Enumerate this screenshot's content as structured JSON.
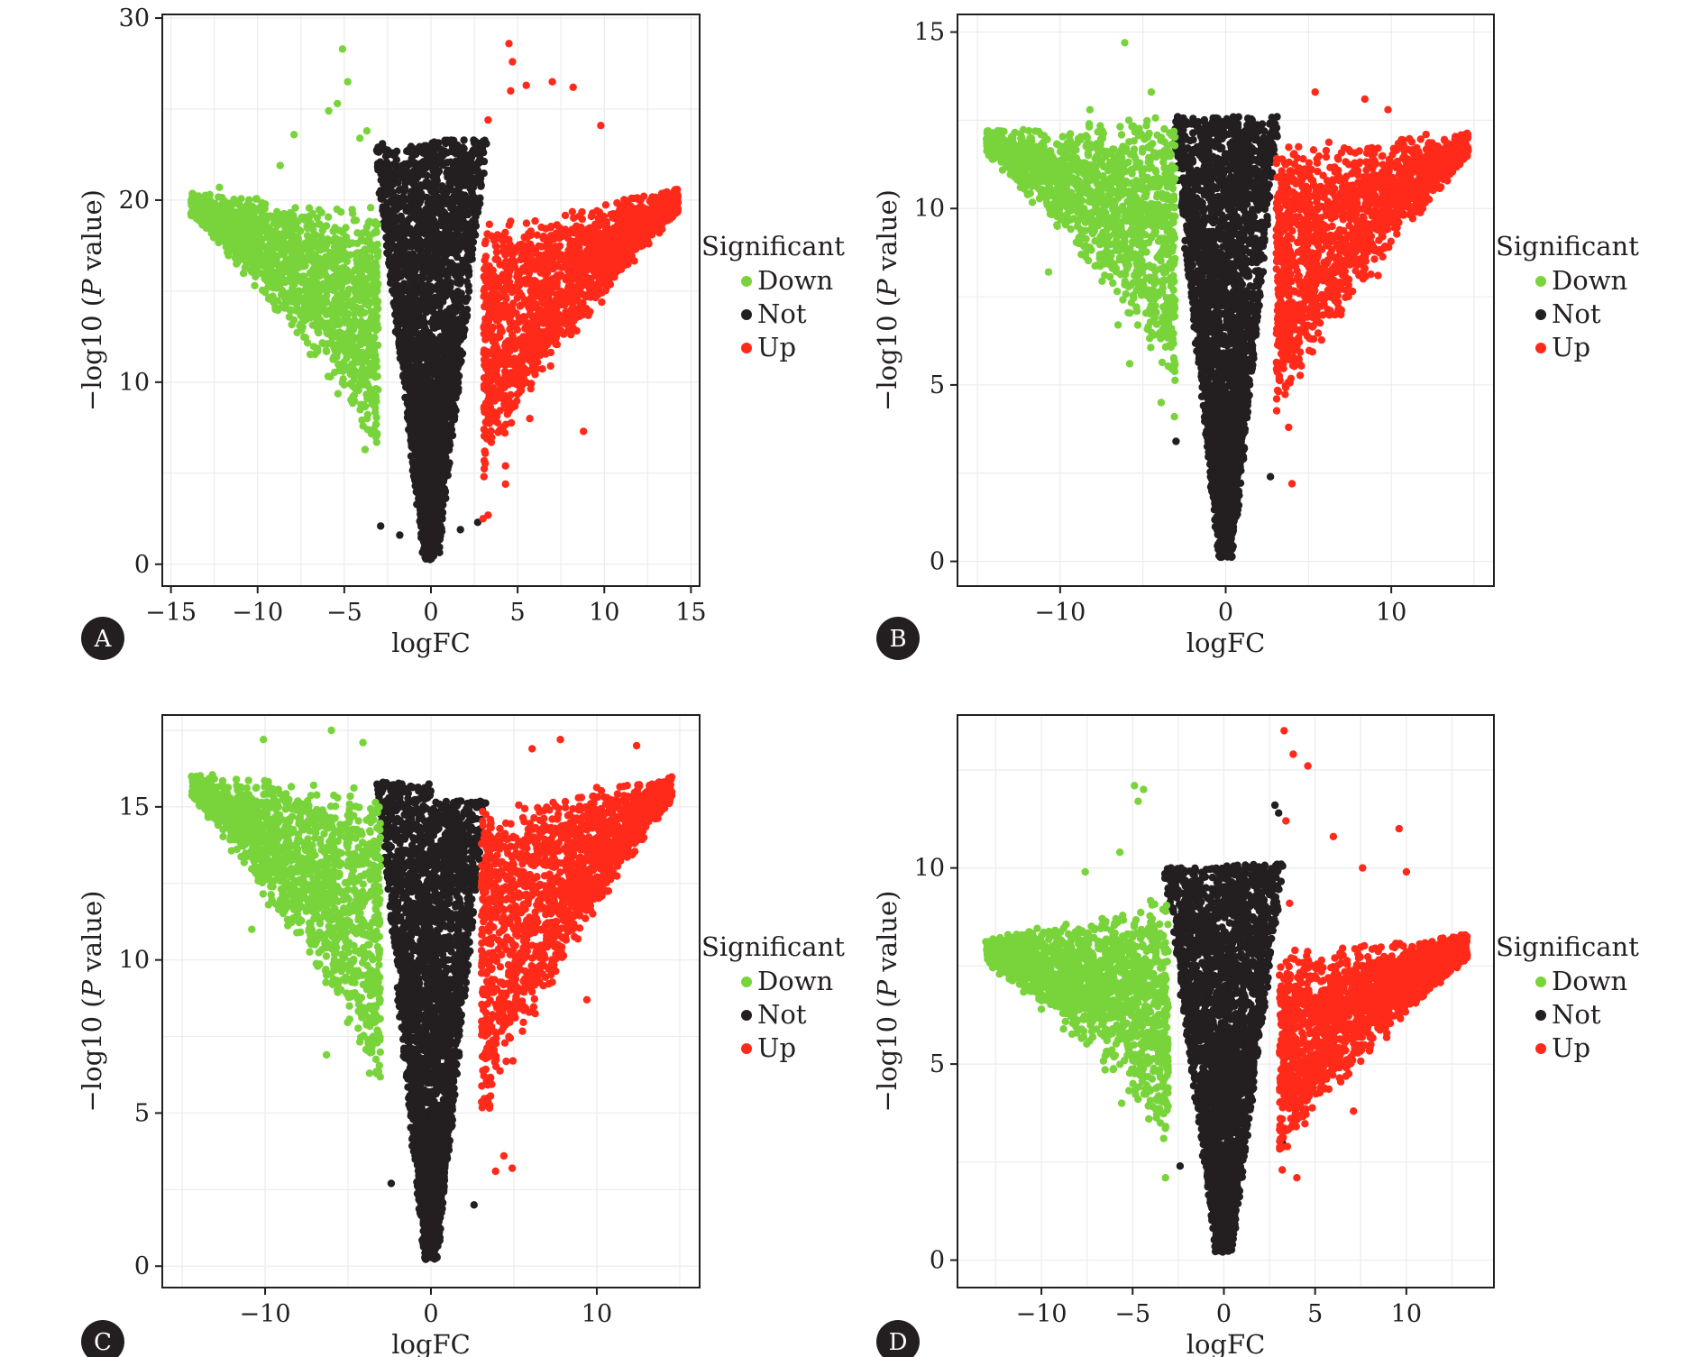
{
  "chart_data": [
    {
      "type": "scatter",
      "panel_label": "A",
      "xlabel": "logFC",
      "ylabel_prefix": "−log10 (",
      "ylabel_italic": "P",
      "ylabel_suffix": " value)",
      "xlim": [
        -15.5,
        15.5
      ],
      "ylim": [
        -1.2,
        30.2
      ],
      "xticks": [
        -15,
        -10,
        -5,
        0,
        5,
        10,
        15
      ],
      "yticks": [
        0,
        10,
        20,
        30
      ],
      "grid": true,
      "threshold_logfc": 3,
      "legend": {
        "title": "Significant",
        "placement": "right",
        "entries": [
          "Down",
          "Not",
          "Up"
        ]
      },
      "series": [
        {
          "name": "Down",
          "color": "#78d43a",
          "apex": [
            -13.8,
            19.8
          ],
          "inner_top": 18.0,
          "inner_bottom": 7.0,
          "outliers": [
            [
              -5.1,
              28.3
            ],
            [
              -4.8,
              26.5
            ],
            [
              -5.9,
              24.9
            ],
            [
              -5.4,
              25.3
            ],
            [
              -3.7,
              23.8
            ],
            [
              -4.1,
              23.4
            ],
            [
              -7.9,
              23.6
            ],
            [
              -8.7,
              21.9
            ],
            [
              -10.3,
              16.7
            ],
            [
              -6.8,
              16.2
            ],
            [
              -6.0,
              12.7
            ],
            [
              -5.8,
              10.3
            ],
            [
              -3.8,
              6.3
            ],
            [
              -4.2,
              11.1
            ],
            [
              -12.2,
              20.7
            ]
          ]
        },
        {
          "name": "Not",
          "color": "#231f20",
          "top_left": 23.0,
          "top_right": 23.3,
          "bottom": 0.2,
          "outliers": [
            [
              -2.8,
              23.1
            ],
            [
              2.5,
              21.6
            ],
            [
              2.7,
              2.3
            ],
            [
              -2.9,
              2.1
            ],
            [
              -1.8,
              1.6
            ],
            [
              1.7,
              1.9
            ]
          ]
        },
        {
          "name": "Up",
          "color": "#ff2a1a",
          "apex": [
            14.2,
            20.0
          ],
          "inner_top": 17.0,
          "inner_bottom": 6.0,
          "outliers": [
            [
              4.5,
              28.6
            ],
            [
              4.7,
              27.6
            ],
            [
              4.6,
              26.0
            ],
            [
              5.5,
              26.3
            ],
            [
              7.0,
              26.5
            ],
            [
              8.2,
              26.2
            ],
            [
              3.3,
              24.4
            ],
            [
              9.8,
              24.1
            ],
            [
              8.8,
              7.3
            ],
            [
              4.3,
              5.4
            ],
            [
              4.3,
              4.4
            ],
            [
              3.3,
              2.7
            ],
            [
              3.0,
              2.5
            ],
            [
              4.6,
              9.3
            ],
            [
              5.7,
              8.0
            ],
            [
              11.3,
              19.9
            ]
          ]
        }
      ]
    },
    {
      "type": "scatter",
      "panel_label": "B",
      "xlabel": "logFC",
      "ylabel_prefix": "−log10 (",
      "ylabel_italic": "P",
      "ylabel_suffix": " value)",
      "xlim": [
        -16.2,
        16.2
      ],
      "ylim": [
        -0.7,
        15.5
      ],
      "xticks": [
        -10,
        0,
        10
      ],
      "yticks": [
        0,
        5,
        10,
        15
      ],
      "grid": true,
      "threshold_logfc": 3,
      "legend": {
        "title": "Significant",
        "placement": "right",
        "entries": [
          "Down",
          "Not",
          "Up"
        ]
      },
      "series": [
        {
          "name": "Down",
          "color": "#78d43a",
          "apex": [
            -14.4,
            11.9
          ],
          "inner_top": 11.8,
          "inner_bottom": 5.5,
          "outliers": [
            [
              -6.1,
              14.7
            ],
            [
              -4.5,
              13.3
            ],
            [
              -10.7,
              8.2
            ],
            [
              -8.2,
              12.8
            ],
            [
              -6.5,
              6.7
            ],
            [
              -5.8,
              5.6
            ],
            [
              -3.9,
              4.5
            ],
            [
              -3.1,
              4.1
            ]
          ]
        },
        {
          "name": "Not",
          "color": "#231f20",
          "top_left": 12.6,
          "top_right": 12.6,
          "bottom": 0.1,
          "outliers": [
            [
              -2.9,
              12.6
            ],
            [
              2.6,
              12.0
            ],
            [
              -3.0,
              3.4
            ],
            [
              2.7,
              2.4
            ]
          ]
        },
        {
          "name": "Up",
          "color": "#ff2a1a",
          "apex": [
            14.6,
            11.8
          ],
          "inner_top": 11.0,
          "inner_bottom": 4.5,
          "outliers": [
            [
              5.4,
              13.3
            ],
            [
              8.4,
              13.1
            ],
            [
              9.8,
              12.8
            ],
            [
              12.1,
              12.1
            ],
            [
              9.2,
              8.1
            ],
            [
              4.0,
              2.2
            ],
            [
              3.8,
              3.8
            ],
            [
              11.9,
              10.0
            ]
          ]
        }
      ]
    },
    {
      "type": "scatter",
      "panel_label": "C",
      "xlabel": "logFC",
      "ylabel_prefix": "−log10 (",
      "ylabel_italic": "P",
      "ylabel_suffix": " value)",
      "xlim": [
        -16.2,
        16.2
      ],
      "ylim": [
        -0.7,
        18.0
      ],
      "xticks": [
        -10,
        0,
        10
      ],
      "yticks": [
        0,
        5,
        10,
        15
      ],
      "grid": true,
      "threshold_logfc": 3,
      "legend": {
        "title": "Significant",
        "placement": "right",
        "entries": [
          "Down",
          "Not",
          "Up"
        ]
      },
      "series": [
        {
          "name": "Down",
          "color": "#78d43a",
          "apex": [
            -14.4,
            15.7
          ],
          "inner_top": 14.8,
          "inner_bottom": 6.2,
          "outliers": [
            [
              -10.1,
              17.2
            ],
            [
              -6.0,
              17.5
            ],
            [
              -4.1,
              17.1
            ],
            [
              -10.8,
              11.0
            ],
            [
              -6.3,
              6.9
            ],
            [
              -3.7,
              6.3
            ],
            [
              -6.3,
              9.5
            ]
          ]
        },
        {
          "name": "Not",
          "color": "#231f20",
          "top_left": 15.8,
          "top_right": 15.2,
          "bottom": 0.2,
          "outliers": [
            [
              -2.9,
              15.8
            ],
            [
              2.5,
              14.7
            ],
            [
              -2.4,
              2.7
            ],
            [
              2.6,
              2.0
            ]
          ]
        },
        {
          "name": "Up",
          "color": "#ff2a1a",
          "apex": [
            14.5,
            15.6
          ],
          "inner_top": 14.2,
          "inner_bottom": 5.0,
          "outliers": [
            [
              7.8,
              17.2
            ],
            [
              12.4,
              17.0
            ],
            [
              6.1,
              16.9
            ],
            [
              9.4,
              8.7
            ],
            [
              4.4,
              3.6
            ],
            [
              4.9,
              3.2
            ],
            [
              3.9,
              3.1
            ],
            [
              11.1,
              14.1
            ]
          ]
        }
      ]
    },
    {
      "type": "scatter",
      "panel_label": "D",
      "xlabel": "logFC",
      "ylabel_prefix": "−log10 (",
      "ylabel_italic": "P",
      "ylabel_suffix": " value)",
      "xlim": [
        -14.6,
        14.8
      ],
      "ylim": [
        -0.7,
        13.9
      ],
      "xticks": [
        -10,
        -5,
        0,
        5,
        10
      ],
      "yticks": [
        0,
        5,
        10
      ],
      "grid": true,
      "threshold_logfc": 3,
      "legend": {
        "title": "Significant",
        "placement": "right",
        "entries": [
          "Down",
          "Not",
          "Up"
        ]
      },
      "series": [
        {
          "name": "Down",
          "color": "#78d43a",
          "apex": [
            -13.0,
            7.9
          ],
          "inner_top": 8.6,
          "inner_bottom": 3.6,
          "outliers": [
            [
              -4.9,
              12.1
            ],
            [
              -4.4,
              12.0
            ],
            [
              -4.7,
              11.7
            ],
            [
              -5.7,
              10.4
            ],
            [
              -7.6,
              9.9
            ],
            [
              -10.0,
              6.4
            ],
            [
              -3.3,
              3.1
            ],
            [
              -3.2,
              2.1
            ],
            [
              -5.6,
              4.0
            ],
            [
              -6.5,
              8.6
            ]
          ]
        },
        {
          "name": "Not",
          "color": "#231f20",
          "top_left": 10.0,
          "top_right": 10.1,
          "bottom": 0.2,
          "outliers": [
            [
              2.8,
              11.6
            ],
            [
              3.0,
              11.4
            ],
            [
              -2.9,
              10.0
            ],
            [
              3.2,
              3.0
            ],
            [
              -2.4,
              2.4
            ]
          ]
        },
        {
          "name": "Up",
          "color": "#ff2a1a",
          "apex": [
            13.3,
            8.0
          ],
          "inner_top": 7.2,
          "inner_bottom": 3.0,
          "outliers": [
            [
              3.3,
              13.5
            ],
            [
              3.8,
              12.9
            ],
            [
              4.6,
              12.6
            ],
            [
              3.4,
              11.2
            ],
            [
              6.0,
              10.8
            ],
            [
              9.6,
              11.0
            ],
            [
              10.0,
              9.9
            ],
            [
              11.0,
              7.6
            ],
            [
              7.1,
              3.8
            ],
            [
              4.0,
              2.1
            ],
            [
              3.2,
              2.3
            ],
            [
              5.3,
              4.4
            ],
            [
              7.6,
              10.0
            ],
            [
              3.6,
              9.1
            ]
          ]
        }
      ]
    }
  ]
}
